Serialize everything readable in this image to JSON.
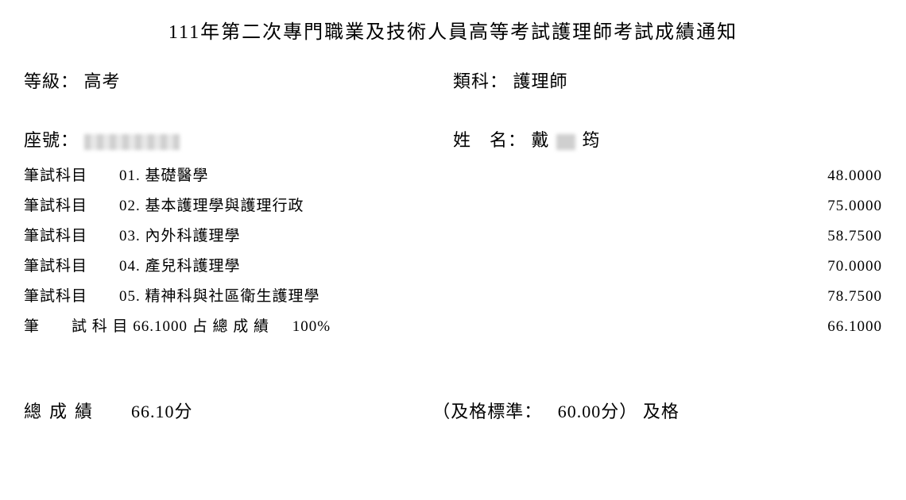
{
  "title": "111年第二次專門職業及技術人員高等考試護理師考試成績通知",
  "level": {
    "label": "等級：",
    "value": "高考"
  },
  "category": {
    "label": "類科：",
    "value": "護理師"
  },
  "seat": {
    "label": "座號："
  },
  "name": {
    "label": "姓　名：",
    "value_prefix": "戴",
    "value_suffix": "筠"
  },
  "subjects": {
    "row_label": "筆試科目",
    "items": [
      {
        "name": "01. 基礎醫學",
        "score": "48.0000"
      },
      {
        "name": "02. 基本護理學與護理行政",
        "score": "75.0000"
      },
      {
        "name": "03. 內外科護理學",
        "score": "58.7500"
      },
      {
        "name": "04. 產兒科護理學",
        "score": "70.0000"
      },
      {
        "name": "05. 精神科與社區衛生護理學",
        "score": "78.7500"
      }
    ]
  },
  "written_summary": {
    "label_wide": "筆　　試 科 目",
    "value": "66.1000",
    "weight_label": "占 總 成 績",
    "weight": "100%",
    "score": "66.1000"
  },
  "final": {
    "label": "總成績",
    "value": "66.10分",
    "pass_label": "（及格標準：",
    "pass_value": "60.00分）",
    "result": "及格"
  },
  "style": {
    "background": "#ffffff",
    "text_color": "#000000",
    "title_fontsize": 24,
    "info_fontsize": 22,
    "subject_fontsize": 19,
    "final_fontsize": 22
  }
}
